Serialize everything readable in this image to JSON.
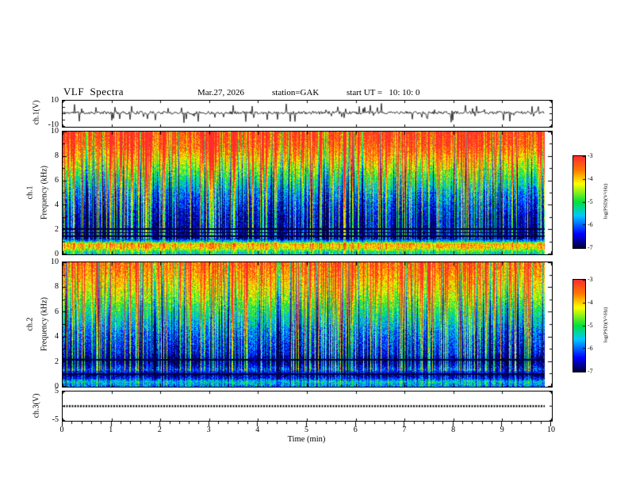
{
  "header": {
    "title": "VLF  Spectra",
    "date": "Mar.27, 2026",
    "station": "station=GAK",
    "start_ut": "start UT =   10: 10: 0"
  },
  "axes": {
    "xlabel": "Time (min)",
    "x_ticks": [
      0,
      1,
      2,
      3,
      4,
      5,
      6,
      7,
      8,
      9,
      10
    ],
    "x_range": [
      0,
      10
    ]
  },
  "panels": {
    "ch1_wave": {
      "label": "ch.1(V)",
      "y_top": "10",
      "y_bottom": "-10"
    },
    "ch1_spec": {
      "label_ch": "ch.1",
      "label_axis": "Frequency (kHz)",
      "y_ticks": [
        0,
        2,
        4,
        6,
        8,
        10
      ]
    },
    "ch2_spec": {
      "label_ch": "ch.2",
      "label_axis": "Frequency (kHz)",
      "y_ticks": [
        0,
        2,
        4,
        6,
        8,
        10
      ]
    },
    "ch3_wave": {
      "label": "ch.3(V)",
      "y_top": "5",
      "y_bottom": "-5"
    }
  },
  "colorbar": {
    "label": "log(PSD)(V²/Hz)",
    "ticks": [
      -3,
      -4,
      -5,
      -6,
      -7
    ],
    "range": [
      -7,
      -3
    ],
    "stops": [
      [
        0,
        0,
        0,
        60
      ],
      [
        0.15,
        0,
        0,
        255
      ],
      [
        0.35,
        0,
        200,
        255
      ],
      [
        0.5,
        0,
        225,
        60
      ],
      [
        0.7,
        255,
        255,
        0
      ],
      [
        0.85,
        255,
        120,
        0
      ],
      [
        1,
        255,
        45,
        45
      ]
    ]
  },
  "chart_data": [
    {
      "panel": "ch.1(V)",
      "type": "line",
      "xlim": [
        0,
        10
      ],
      "ylim": [
        -10,
        10
      ],
      "xlabel": "Time (min)",
      "description": "Noisy VLF channel-1 voltage trace centred near 0-1 V with frequent impulsive spikes (sferics) reaching about ±9 V across the whole 10-minute record",
      "baseline": 0.8,
      "noise_amp": 1.2,
      "spike_rate": 0.1,
      "spike_amp": 7.5,
      "spike_down_fraction": 0.55,
      "ytick_vals": [
        -10,
        -5,
        0,
        5,
        10
      ],
      "seed": 11
    },
    {
      "panel": "ch.1 spectrogram",
      "type": "heatmap",
      "xlim": [
        0,
        10
      ],
      "ylim": [
        0,
        10
      ],
      "zlim": [
        -7,
        -3
      ],
      "xlabel": "Time (min)",
      "ylabel": "Frequency (kHz)",
      "zlabel": "log(PSD)(V²/Hz)",
      "colormap": "jet",
      "description": "High PSD (red/orange, about -3.5) above ~6.5 kHz, decreasing to low PSD (dark blue, about -6.5) between 1.5 and 4 kHz; strong narrow band near 0.5-1 kHz (~-4); dense impulsive vertical broadband streaks throughout; thin dark horizontal interference lines near 1.5-2.1 kHz",
      "profile": [
        [
          0,
          -5.6
        ],
        [
          0.3,
          -5.0
        ],
        [
          0.55,
          -4.1
        ],
        [
          0.9,
          -3.9
        ],
        [
          1.1,
          -5.6
        ],
        [
          1.35,
          -6.7
        ],
        [
          2.2,
          -6.6
        ],
        [
          3,
          -6.5
        ],
        [
          4,
          -6.2
        ],
        [
          5,
          -5.8
        ],
        [
          5.8,
          -5.3
        ],
        [
          6.6,
          -4.8
        ],
        [
          7.4,
          -4.3
        ],
        [
          8.2,
          -3.8
        ],
        [
          9,
          -3.4
        ],
        [
          10,
          -3.2
        ]
      ],
      "dark_lines": [
        1.5,
        1.8,
        2.1
      ],
      "streak_rate": 0.3,
      "seed": 23
    },
    {
      "panel": "ch.2 spectrogram",
      "type": "heatmap",
      "xlim": [
        0,
        10
      ],
      "ylim": [
        0,
        10
      ],
      "zlim": [
        -7,
        -3
      ],
      "xlabel": "Time (min)",
      "ylabel": "Frequency (kHz)",
      "zlabel": "log(PSD)(V²/Hz)",
      "colormap": "jet",
      "description": "Similar to ch.1 but slightly weaker at top: red/yellow above ~7.5 kHz, green 5-7 kHz, dark blue 1-4 kHz with near-black bands around 1 and 2.2 kHz, lighter blue-green band near 0.5 kHz; impulsive vertical streaks throughout",
      "profile": [
        [
          0,
          -6.0
        ],
        [
          0.45,
          -5.5
        ],
        [
          0.7,
          -6.4
        ],
        [
          1.0,
          -6.8
        ],
        [
          1.4,
          -6.1
        ],
        [
          1.8,
          -6.6
        ],
        [
          2.2,
          -6.9
        ],
        [
          2.7,
          -6.4
        ],
        [
          3.5,
          -6.2
        ],
        [
          4.5,
          -5.9
        ],
        [
          5.5,
          -5.4
        ],
        [
          6.5,
          -4.9
        ],
        [
          7.5,
          -4.4
        ],
        [
          8.5,
          -4.0
        ],
        [
          9.3,
          -3.7
        ],
        [
          10,
          -3.5
        ]
      ],
      "dark_lines": [
        1.05,
        2.2
      ],
      "streak_rate": 0.26,
      "seed": 37
    },
    {
      "panel": "ch.3(V)",
      "type": "line",
      "xlim": [
        0,
        10
      ],
      "ylim": [
        -5,
        5
      ],
      "constant_value": 0,
      "description": "Flat thick trace at 0 V for the whole record (inactive channel)",
      "ytick_vals": [
        -5,
        0,
        5
      ],
      "seed": 5
    }
  ]
}
